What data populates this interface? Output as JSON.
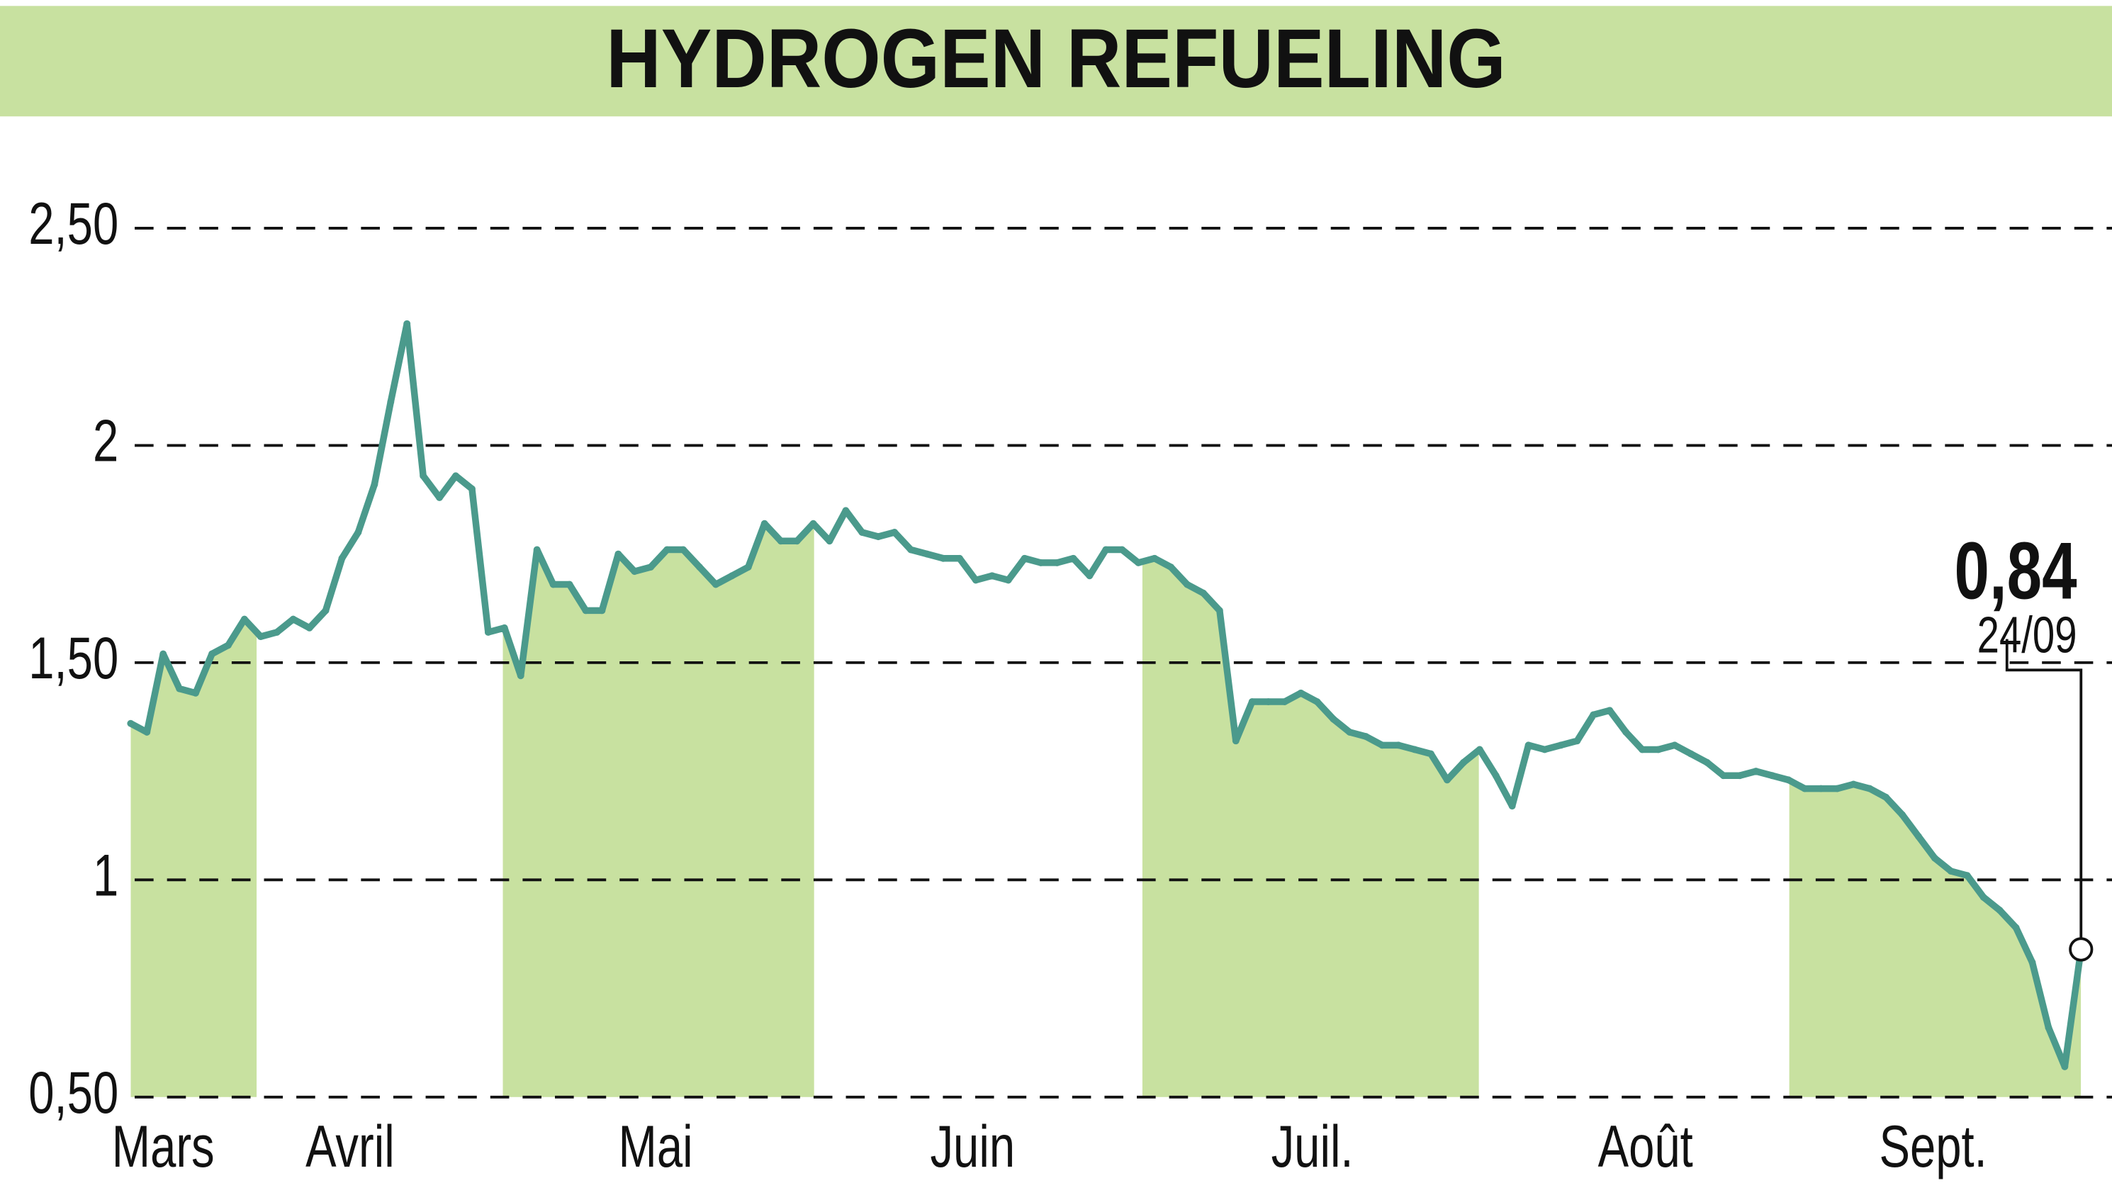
{
  "chart_data": {
    "type": "line",
    "title": "HYDROGEN REFUELING",
    "values": [
      1.36,
      1.34,
      1.52,
      1.44,
      1.43,
      1.52,
      1.54,
      1.6,
      1.56,
      1.57,
      1.6,
      1.58,
      1.62,
      1.74,
      1.8,
      1.91,
      2.1,
      2.28,
      1.93,
      1.88,
      1.93,
      1.9,
      1.57,
      1.58,
      1.47,
      1.76,
      1.68,
      1.68,
      1.62,
      1.62,
      1.75,
      1.71,
      1.72,
      1.76,
      1.76,
      1.72,
      1.68,
      1.7,
      1.72,
      1.82,
      1.78,
      1.78,
      1.82,
      1.78,
      1.85,
      1.8,
      1.79,
      1.8,
      1.76,
      1.75,
      1.74,
      1.74,
      1.69,
      1.7,
      1.69,
      1.74,
      1.73,
      1.73,
      1.74,
      1.7,
      1.76,
      1.76,
      1.73,
      1.74,
      1.72,
      1.68,
      1.66,
      1.62,
      1.32,
      1.41,
      1.41,
      1.41,
      1.43,
      1.41,
      1.37,
      1.34,
      1.33,
      1.31,
      1.31,
      1.3,
      1.29,
      1.23,
      1.27,
      1.3,
      1.24,
      1.17,
      1.31,
      1.3,
      1.31,
      1.32,
      1.38,
      1.39,
      1.34,
      1.3,
      1.3,
      1.31,
      1.29,
      1.27,
      1.24,
      1.24,
      1.25,
      1.24,
      1.23,
      1.21,
      1.21,
      1.21,
      1.22,
      1.21,
      1.19,
      1.15,
      1.1,
      1.05,
      1.02,
      1.01,
      0.96,
      0.93,
      0.89,
      0.81,
      0.66,
      0.57,
      0.84
    ],
    "color": "#4b9a8c",
    "fill_color": "#c8e1a0",
    "xlim": [
      0,
      120
    ],
    "xticks": [
      {
        "value": 2,
        "label": "Mars"
      },
      {
        "value": 13.5,
        "label": "Avril"
      },
      {
        "value": 32.3,
        "label": "Mai"
      },
      {
        "value": 51.8,
        "label": "Juin"
      },
      {
        "value": 72.7,
        "label": "Juil."
      },
      {
        "value": 93.2,
        "label": "Août"
      },
      {
        "value": 110.9,
        "label": "Sept."
      }
    ],
    "ylim": [
      0.5,
      2.5
    ],
    "yticks": [
      {
        "value": 2.5,
        "label": "2,50"
      },
      2,
      {
        "value": 1.5,
        "label": "1,50"
      },
      1,
      {
        "value": 0.5,
        "label": "0,50"
      }
    ],
    "grid": true,
    "last_value_label": "0,84",
    "last_date": "24/09"
  }
}
